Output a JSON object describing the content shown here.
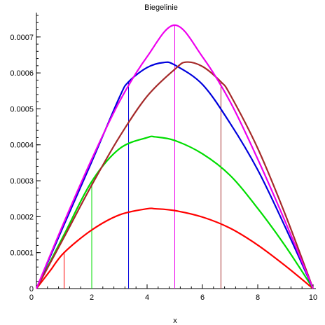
{
  "chart_data": {
    "type": "line",
    "title": "Biegelinie",
    "xlabel": "x",
    "ylabel": "",
    "xlim": [
      0,
      10
    ],
    "ylim": [
      0,
      0.00076
    ],
    "x_ticks": [
      0,
      2,
      4,
      6,
      8,
      10
    ],
    "x_tick_labels": [
      "0",
      "2",
      "4",
      "6",
      "8",
      "10"
    ],
    "y_ticks": [
      0,
      0.0001,
      0.0002,
      0.0003,
      0.0004,
      0.0005,
      0.0006,
      0.0007
    ],
    "y_tick_labels": [
      "0",
      "0.0001",
      "0.0002",
      "0.0003",
      "0.0004",
      "0.0005",
      "0.0006",
      "0.0007"
    ],
    "grid": false,
    "series": [
      {
        "color": "#ff0000",
        "load_x": 1.0,
        "x": [
          0,
          0.5,
          1,
          2,
          3,
          4,
          4.3,
          5,
          6,
          7,
          8,
          9,
          10
        ],
        "y": [
          0,
          5e-05,
          0.0001,
          0.000163,
          0.000205,
          0.000222,
          0.000222,
          0.000217,
          0.000199,
          0.000168,
          0.000121,
          6.32e-05,
          0
        ]
      },
      {
        "color": "#00dd00",
        "load_x": 2.0,
        "x": [
          0,
          1,
          2,
          3,
          4,
          4.3,
          5,
          6,
          7,
          8,
          9,
          10
        ],
        "y": [
          0,
          0.00015,
          0.000298,
          0.000389,
          0.00042,
          0.000422,
          0.000412,
          0.000375,
          0.000315,
          0.000223,
          0.000118,
          0
        ]
      },
      {
        "color": "#0000dd",
        "load_x": 3.33,
        "x": [
          0,
          1,
          2,
          3,
          3.33,
          4,
          4.6,
          5,
          6,
          7,
          8,
          9,
          10
        ],
        "y": [
          0,
          0.000178,
          0.000353,
          0.000532,
          0.000575,
          0.000615,
          0.000629,
          0.000622,
          0.000568,
          0.00046,
          0.00033,
          0.00017,
          0
        ]
      },
      {
        "color": "#a52a2a",
        "load_x": 6.67,
        "x": [
          0,
          1,
          2,
          3,
          4,
          5,
          5.4,
          6,
          6.67,
          7,
          8,
          9,
          10
        ],
        "y": [
          0,
          0.000143,
          0.000288,
          0.000422,
          0.000535,
          0.00061,
          0.00063,
          0.000618,
          0.000575,
          0.00054,
          0.00039,
          0.000205,
          0
        ]
      },
      {
        "color": "#ee00ee",
        "load_x": 5.0,
        "x": [
          0,
          1,
          2,
          3,
          4,
          5,
          6,
          7,
          8,
          9,
          10
        ],
        "y": [
          0,
          0.000185,
          0.00036,
          0.00052,
          0.000645,
          0.000733,
          0.000645,
          0.00052,
          0.00036,
          0.000185,
          0
        ]
      }
    ]
  }
}
